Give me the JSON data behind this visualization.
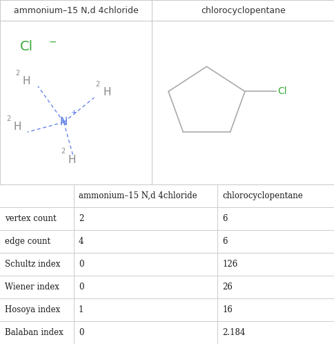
{
  "col1_header": "ammonium–15 N,d 4chloride",
  "col2_header": "chlorocyclopentane",
  "rows": [
    {
      "label": "vertex count",
      "v1": "2",
      "v2": "6"
    },
    {
      "label": "edge count",
      "v1": "4",
      "v2": "6"
    },
    {
      "label": "Schultz index",
      "v1": "0",
      "v2": "126"
    },
    {
      "label": "Wiener index",
      "v1": "0",
      "v2": "26"
    },
    {
      "label": "Hosoya index",
      "v1": "1",
      "v2": "16"
    },
    {
      "label": "Balaban index",
      "v1": "0",
      "v2": "2.184"
    }
  ],
  "green_color": "#3aaa35",
  "blue_color": "#5b7be8",
  "gray_color": "#888888",
  "ring_color": "#aaaaaa",
  "border_color": "#cccccc",
  "text_color": "#1a1a1a",
  "header_font_color": "#333333"
}
